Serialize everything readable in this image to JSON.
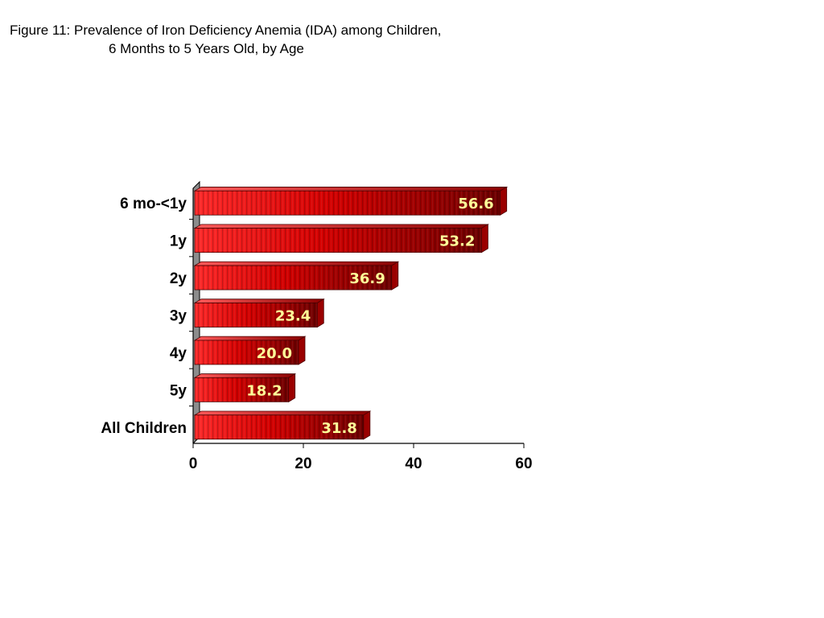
{
  "title": {
    "line1": "Figure 11:  Prevalence of Iron Deficiency Anemia (IDA) among Children,",
    "line2": "6 Months to 5 Years Old,  by Age"
  },
  "chart_data": {
    "type": "bar",
    "orientation": "horizontal",
    "style": "3d-cylinder-bars",
    "categories": [
      "6 mo-<1y",
      "1y",
      "2y",
      "3y",
      "4y",
      "5y",
      "All Children"
    ],
    "values": [
      56.6,
      53.2,
      36.9,
      23.4,
      20.0,
      18.2,
      31.8
    ],
    "value_labels": [
      "56.6",
      "53.2",
      "36.9",
      "23.4",
      "20.0",
      "18.2",
      "31.8"
    ],
    "xlim": [
      0,
      60
    ],
    "xticks": [
      "0",
      "20",
      "40",
      "60"
    ],
    "xlabel": "",
    "ylabel": "",
    "grid": false,
    "legend": "none",
    "colors": {
      "bar_light": "#ff2a2a",
      "bar_dark": "#6e0000",
      "bar_edge": "#4a0000",
      "value_text": "#ffff99",
      "back_wall": "#8c8c8c"
    }
  }
}
